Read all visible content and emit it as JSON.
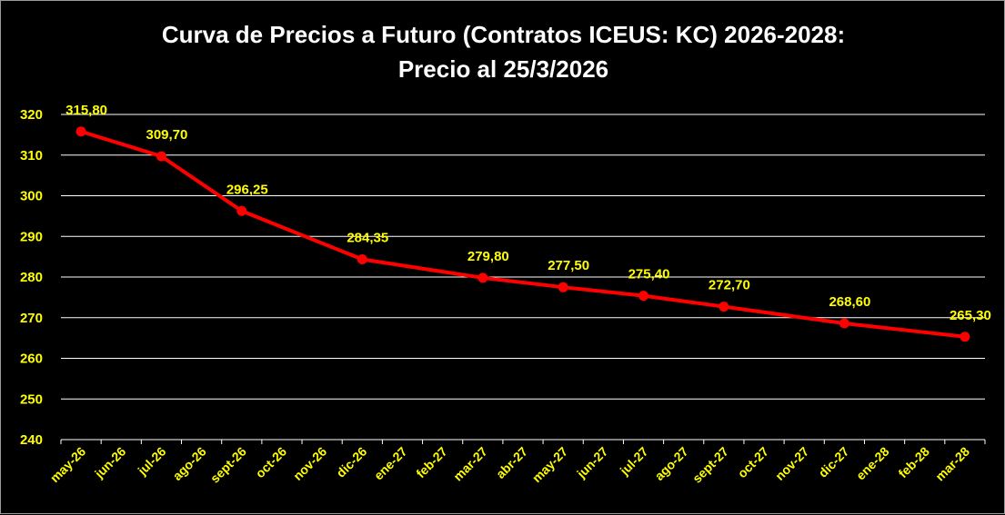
{
  "chart_data": {
    "type": "line",
    "title_line_1": "Curva de Precios a Futuro  (Contratos ICEUS: KC) 2026-2028:",
    "title_line_2": "Precio al 25/3/2026",
    "xlabel": "",
    "ylabel": "",
    "ylim": [
      240,
      320
    ],
    "yticks": [
      240,
      250,
      260,
      270,
      280,
      290,
      300,
      310,
      320
    ],
    "grid": true,
    "categories": [
      "may-26",
      "jun-26",
      "jul-26",
      "ago-26",
      "sept-26",
      "oct-26",
      "nov-26",
      "dic-26",
      "ene-27",
      "feb-27",
      "mar-27",
      "abr-27",
      "may-27",
      "jun-27",
      "jul-27",
      "ago-27",
      "sept-27",
      "oct-27",
      "nov-27",
      "dic-27",
      "ene-28",
      "feb-28",
      "mar-28"
    ],
    "points": [
      {
        "x": "may-26",
        "y": 315.8,
        "label": "315,80"
      },
      {
        "x": "jul-26",
        "y": 309.7,
        "label": "309,70"
      },
      {
        "x": "sept-26",
        "y": 296.25,
        "label": "296,25"
      },
      {
        "x": "dic-26",
        "y": 284.35,
        "label": "284,35"
      },
      {
        "x": "mar-27",
        "y": 279.8,
        "label": "279,80"
      },
      {
        "x": "may-27",
        "y": 277.5,
        "label": "277,50"
      },
      {
        "x": "jul-27",
        "y": 275.4,
        "label": "275,40"
      },
      {
        "x": "sept-27",
        "y": 272.7,
        "label": "272,70"
      },
      {
        "x": "dic-27",
        "y": 268.6,
        "label": "268,60"
      },
      {
        "x": "mar-28",
        "y": 265.3,
        "label": "265,30"
      }
    ],
    "colors": {
      "background": "#000000",
      "line": "#ff0000",
      "labels": "#ffff00",
      "title": "#ffffff",
      "grid": "#ffffff"
    }
  }
}
